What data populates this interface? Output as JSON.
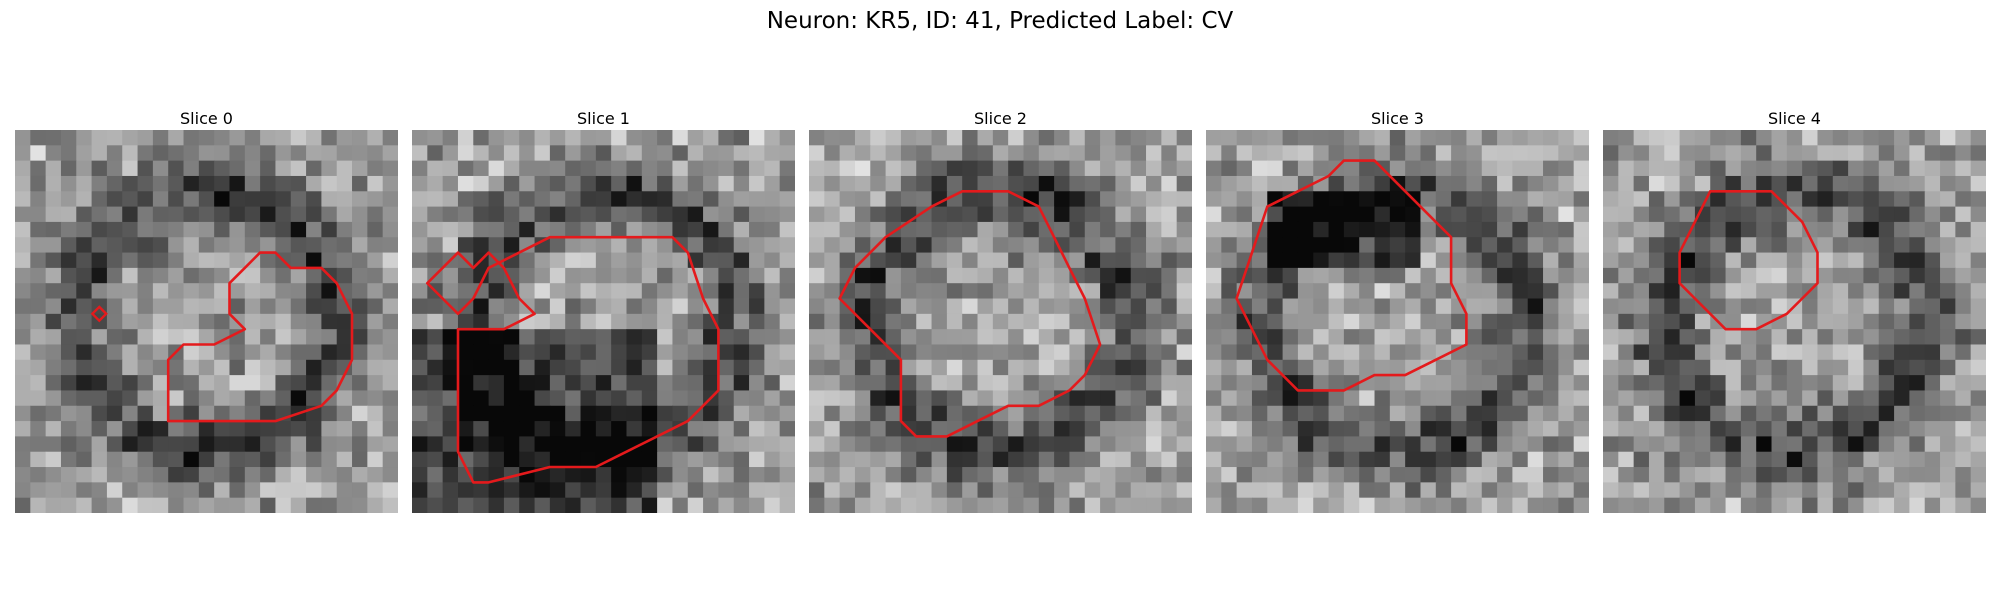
{
  "figure": {
    "title": "Neuron: KR5, ID: 41, Predicted Label: CV",
    "contour_color": "#e41a1c",
    "panels": [
      {
        "title": "Slice 0",
        "seed": 11,
        "contour": [
          [
            15,
            9
          ],
          [
            14,
            10
          ],
          [
            14,
            12
          ],
          [
            15,
            13
          ],
          [
            13,
            14
          ],
          [
            11,
            14
          ],
          [
            10,
            15
          ],
          [
            10,
            19
          ],
          [
            17,
            19
          ],
          [
            20,
            18
          ],
          [
            21,
            17
          ],
          [
            22,
            15
          ],
          [
            22,
            12
          ],
          [
            21,
            10
          ],
          [
            20,
            9
          ],
          [
            18,
            9
          ],
          [
            17,
            8
          ],
          [
            16,
            8
          ]
        ],
        "marker": [
          5.5,
          12
        ]
      },
      {
        "title": "Slice 1",
        "seed": 23,
        "contour": [
          [
            13,
            7
          ],
          [
            15,
            7
          ],
          [
            17,
            7
          ],
          [
            18,
            8
          ],
          [
            19,
            11
          ],
          [
            20,
            13
          ],
          [
            20,
            17
          ],
          [
            19,
            18
          ],
          [
            18,
            19
          ],
          [
            16,
            20
          ],
          [
            14,
            21
          ],
          [
            12,
            22
          ],
          [
            9,
            22
          ],
          [
            5,
            23
          ],
          [
            4,
            23
          ],
          [
            3,
            21
          ],
          [
            3,
            13
          ],
          [
            6,
            13
          ],
          [
            8,
            12
          ],
          [
            7,
            11
          ],
          [
            6,
            9
          ],
          [
            5,
            8
          ],
          [
            4,
            9
          ],
          [
            3,
            8
          ],
          [
            2,
            9
          ],
          [
            1,
            10
          ],
          [
            2,
            11
          ],
          [
            3,
            12
          ],
          [
            4,
            11
          ],
          [
            5,
            9
          ],
          [
            7,
            8
          ],
          [
            9,
            7
          ],
          [
            12,
            7
          ]
        ],
        "marker": null
      },
      {
        "title": "Slice 2",
        "seed": 37,
        "contour": [
          [
            10,
            4
          ],
          [
            13,
            4
          ],
          [
            15,
            5
          ],
          [
            16,
            7
          ],
          [
            17,
            9
          ],
          [
            18,
            11
          ],
          [
            19,
            14
          ],
          [
            18,
            16
          ],
          [
            17,
            17
          ],
          [
            15,
            18
          ],
          [
            13,
            18
          ],
          [
            11,
            19
          ],
          [
            9,
            20
          ],
          [
            7,
            20
          ],
          [
            6,
            19
          ],
          [
            6,
            15
          ],
          [
            4,
            13
          ],
          [
            2,
            11
          ],
          [
            3,
            9
          ],
          [
            5,
            7
          ],
          [
            8,
            5
          ]
        ],
        "marker": null
      },
      {
        "title": "Slice 3",
        "seed": 53,
        "contour": [
          [
            9,
            2
          ],
          [
            11,
            2
          ],
          [
            13,
            4
          ],
          [
            15,
            6
          ],
          [
            16,
            7
          ],
          [
            16,
            10
          ],
          [
            17,
            12
          ],
          [
            17,
            14
          ],
          [
            15,
            15
          ],
          [
            13,
            16
          ],
          [
            11,
            16
          ],
          [
            9,
            17
          ],
          [
            6,
            17
          ],
          [
            4,
            15
          ],
          [
            3,
            13
          ],
          [
            2,
            11
          ],
          [
            3,
            8
          ],
          [
            4,
            5
          ],
          [
            6,
            4
          ],
          [
            8,
            3
          ]
        ],
        "marker": null
      },
      {
        "title": "Slice 4",
        "seed": 71,
        "contour": [
          [
            7,
            4
          ],
          [
            11,
            4
          ],
          [
            13,
            6
          ],
          [
            14,
            8
          ],
          [
            14,
            10
          ],
          [
            13,
            11
          ],
          [
            12,
            12
          ],
          [
            10,
            13
          ],
          [
            8,
            13
          ],
          [
            7,
            12
          ],
          [
            6,
            11
          ],
          [
            5,
            10
          ],
          [
            5,
            8
          ],
          [
            6,
            6
          ]
        ],
        "marker": null
      }
    ]
  }
}
